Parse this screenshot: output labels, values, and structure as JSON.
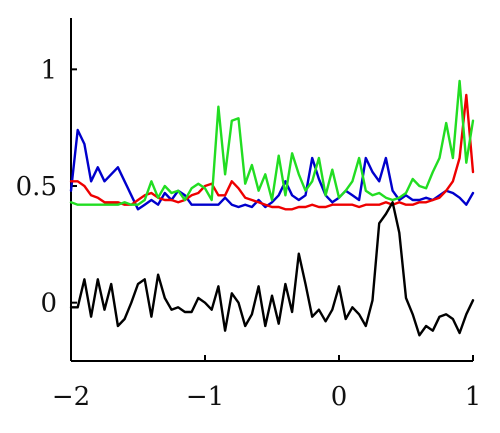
{
  "chart_data": {
    "type": "line",
    "title": "",
    "xlabel": "",
    "ylabel": "",
    "xlim": [
      -2,
      1
    ],
    "ylim": [
      -0.25,
      1.22
    ],
    "grid": false,
    "legend": "none",
    "x_ticks": [
      {
        "value": -2,
        "label": "−2"
      },
      {
        "value": -1,
        "label": "−1"
      },
      {
        "value": 0,
        "label": "0"
      },
      {
        "value": 1,
        "label": "1"
      }
    ],
    "y_ticks": [
      {
        "value": 0,
        "label": "0"
      },
      {
        "value": 0.5,
        "label": "0.5"
      },
      {
        "value": 1,
        "label": "1"
      }
    ],
    "x": [
      -2.0,
      -1.95,
      -1.9,
      -1.85,
      -1.8,
      -1.75,
      -1.7,
      -1.65,
      -1.6,
      -1.55,
      -1.5,
      -1.45,
      -1.4,
      -1.35,
      -1.3,
      -1.25,
      -1.2,
      -1.15,
      -1.1,
      -1.05,
      -1.0,
      -0.95,
      -0.9,
      -0.85,
      -0.8,
      -0.75,
      -0.7,
      -0.65,
      -0.6,
      -0.55,
      -0.5,
      -0.45,
      -0.4,
      -0.35,
      -0.3,
      -0.25,
      -0.2,
      -0.15,
      -0.1,
      -0.05,
      0.0,
      0.05,
      0.1,
      0.15,
      0.2,
      0.25,
      0.3,
      0.35,
      0.4,
      0.45,
      0.5,
      0.55,
      0.6,
      0.65,
      0.7,
      0.75,
      0.8,
      0.85,
      0.9,
      0.95,
      1.0
    ],
    "series": [
      {
        "color": "#0000cc",
        "values": [
          0.48,
          0.74,
          0.68,
          0.52,
          0.58,
          0.52,
          0.55,
          0.58,
          0.52,
          0.46,
          0.4,
          0.42,
          0.44,
          0.42,
          0.47,
          0.44,
          0.48,
          0.46,
          0.42,
          0.42,
          0.42,
          0.42,
          0.42,
          0.45,
          0.42,
          0.41,
          0.42,
          0.41,
          0.44,
          0.41,
          0.43,
          0.46,
          0.52,
          0.46,
          0.44,
          0.46,
          0.62,
          0.53,
          0.46,
          0.43,
          0.45,
          0.48,
          0.46,
          0.44,
          0.62,
          0.56,
          0.52,
          0.62,
          0.48,
          0.44,
          0.46,
          0.44,
          0.44,
          0.45,
          0.44,
          0.46,
          0.48,
          0.47,
          0.45,
          0.42,
          0.47
        ]
      },
      {
        "color": "#ee0000",
        "values": [
          0.52,
          0.52,
          0.5,
          0.46,
          0.45,
          0.43,
          0.43,
          0.43,
          0.42,
          0.42,
          0.44,
          0.46,
          0.47,
          0.45,
          0.44,
          0.44,
          0.43,
          0.44,
          0.46,
          0.47,
          0.5,
          0.51,
          0.46,
          0.46,
          0.52,
          0.49,
          0.45,
          0.44,
          0.43,
          0.42,
          0.41,
          0.41,
          0.4,
          0.4,
          0.41,
          0.41,
          0.42,
          0.41,
          0.41,
          0.42,
          0.42,
          0.42,
          0.42,
          0.41,
          0.42,
          0.42,
          0.42,
          0.43,
          0.42,
          0.43,
          0.42,
          0.42,
          0.43,
          0.43,
          0.44,
          0.45,
          0.48,
          0.52,
          0.62,
          0.89,
          0.56
        ]
      },
      {
        "color": "#22dd22",
        "values": [
          0.43,
          0.42,
          0.42,
          0.42,
          0.42,
          0.42,
          0.42,
          0.42,
          0.43,
          0.42,
          0.42,
          0.44,
          0.52,
          0.45,
          0.5,
          0.47,
          0.48,
          0.44,
          0.49,
          0.51,
          0.49,
          0.44,
          0.84,
          0.55,
          0.78,
          0.79,
          0.51,
          0.59,
          0.48,
          0.55,
          0.44,
          0.63,
          0.46,
          0.64,
          0.55,
          0.48,
          0.52,
          0.62,
          0.46,
          0.57,
          0.45,
          0.48,
          0.52,
          0.62,
          0.48,
          0.46,
          0.47,
          0.45,
          0.44,
          0.45,
          0.47,
          0.53,
          0.5,
          0.49,
          0.56,
          0.62,
          0.77,
          0.62,
          0.95,
          0.6,
          0.78
        ]
      },
      {
        "color": "#000000",
        "values": [
          -0.02,
          -0.02,
          0.1,
          -0.06,
          0.1,
          -0.03,
          0.08,
          -0.1,
          -0.07,
          0.0,
          0.08,
          0.1,
          -0.06,
          0.12,
          0.02,
          -0.03,
          -0.02,
          -0.04,
          -0.04,
          0.02,
          0.0,
          -0.03,
          0.07,
          -0.12,
          0.04,
          0.0,
          -0.1,
          -0.05,
          0.07,
          -0.1,
          0.03,
          -0.09,
          0.08,
          -0.04,
          0.21,
          0.08,
          -0.06,
          -0.03,
          -0.08,
          -0.03,
          0.07,
          -0.07,
          -0.02,
          -0.05,
          -0.1,
          0.01,
          0.34,
          0.38,
          0.43,
          0.3,
          0.02,
          -0.05,
          -0.14,
          -0.1,
          -0.12,
          -0.06,
          -0.05,
          -0.07,
          -0.13,
          -0.05,
          0.01
        ]
      }
    ]
  }
}
